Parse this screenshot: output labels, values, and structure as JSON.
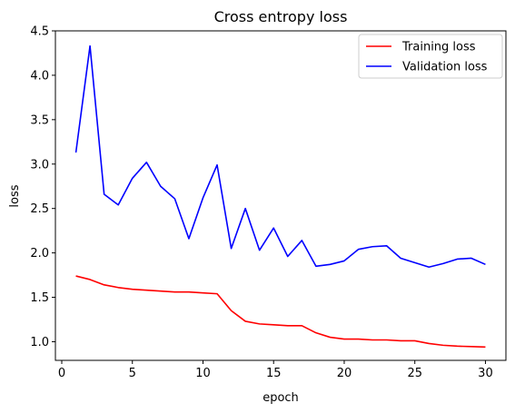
{
  "chart_data": {
    "type": "line",
    "title": "Cross entropy loss",
    "xlabel": "epoch",
    "ylabel": "loss",
    "xlim": [
      -0.45,
      31.45
    ],
    "ylim": [
      0.79,
      4.5
    ],
    "xticks": [
      0,
      5,
      10,
      15,
      20,
      25,
      30
    ],
    "yticks": [
      1.0,
      1.5,
      2.0,
      2.5,
      3.0,
      3.5,
      4.0,
      4.5
    ],
    "grid": false,
    "legend_position": "top-right",
    "x": [
      1,
      2,
      3,
      4,
      5,
      6,
      7,
      8,
      9,
      10,
      11,
      12,
      13,
      14,
      15,
      16,
      17,
      18,
      19,
      20,
      21,
      22,
      23,
      24,
      25,
      26,
      27,
      28,
      29,
      30
    ],
    "series": [
      {
        "name": "Training loss",
        "color": "#ff0000",
        "values": [
          1.74,
          1.7,
          1.64,
          1.61,
          1.59,
          1.58,
          1.57,
          1.56,
          1.56,
          1.55,
          1.54,
          1.35,
          1.23,
          1.2,
          1.19,
          1.18,
          1.18,
          1.1,
          1.05,
          1.03,
          1.03,
          1.02,
          1.02,
          1.01,
          1.01,
          0.98,
          0.96,
          0.95,
          0.945,
          0.94
        ]
      },
      {
        "name": "Validation loss",
        "color": "#0000ff",
        "values": [
          3.13,
          4.33,
          2.66,
          2.54,
          2.84,
          3.02,
          2.75,
          2.61,
          2.16,
          2.62,
          2.99,
          2.05,
          2.5,
          2.03,
          2.28,
          1.96,
          2.14,
          1.85,
          1.87,
          1.91,
          2.04,
          2.07,
          2.08,
          1.94,
          1.89,
          1.84,
          1.88,
          1.93,
          1.94,
          1.87
        ]
      }
    ]
  }
}
